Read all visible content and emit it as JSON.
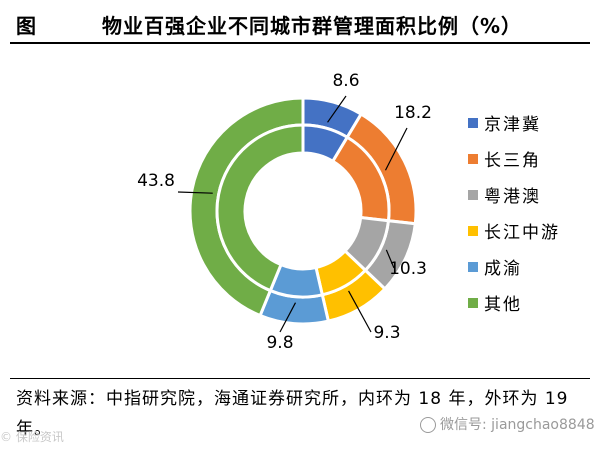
{
  "header": {
    "tag": "图",
    "title": "物业百强企业不同城市群管理面积比例（%）"
  },
  "chart_data": {
    "type": "pie",
    "categories": [
      "京津冀",
      "长三角",
      "粤港澳",
      "长江中游",
      "成渝",
      "其他"
    ],
    "colors": [
      "#4472C4",
      "#ED7D31",
      "#A5A5A5",
      "#FFC000",
      "#5B9BD5",
      "#70AD47"
    ],
    "series": [
      {
        "values": [
          8.6,
          18.2,
          10.3,
          9.3,
          9.8,
          43.8
        ]
      },
      {
        "values": [
          8.6,
          18.2,
          10.3,
          9.3,
          9.8,
          43.8
        ]
      }
    ],
    "data_labels": [
      "8.6",
      "18.2",
      "10.3",
      "9.3",
      "9.8",
      "43.8"
    ],
    "legend_position": "right"
  },
  "source": {
    "text": "资料来源：中指研究院，海通证券研究所，内环为 18 年，外环为 19 年。"
  },
  "watermark": {
    "left": "© 保险资讯",
    "right": "微信号: jiangchao8848"
  }
}
